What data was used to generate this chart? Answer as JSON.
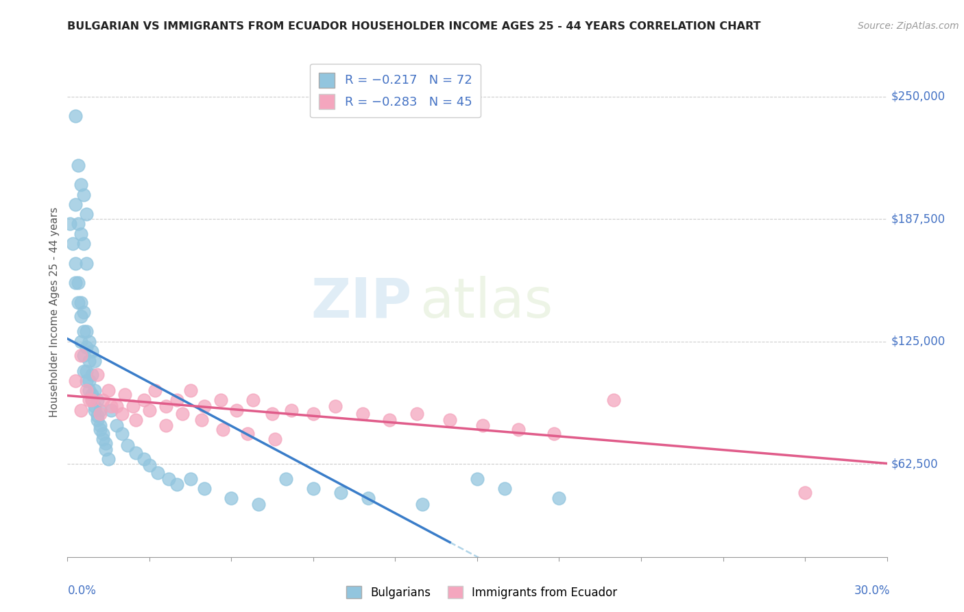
{
  "title": "BULGARIAN VS IMMIGRANTS FROM ECUADOR HOUSEHOLDER INCOME AGES 25 - 44 YEARS CORRELATION CHART",
  "source": "Source: ZipAtlas.com",
  "ylabel": "Householder Income Ages 25 - 44 years",
  "yticks": [
    62500,
    125000,
    187500,
    250000
  ],
  "ytick_labels": [
    "$62,500",
    "$125,000",
    "$187,500",
    "$250,000"
  ],
  "xmin": 0.0,
  "xmax": 0.3,
  "ymin": 15000,
  "ymax": 265000,
  "legend_blue_r": "R = -0.217",
  "legend_blue_n": "N = 72",
  "legend_pink_r": "R = -0.283",
  "legend_pink_n": "N = 45",
  "blue_scatter_color": "#92c5de",
  "pink_scatter_color": "#f4a6be",
  "blue_line_color": "#3a7dc9",
  "pink_line_color": "#e05c8a",
  "blue_dash_color": "#b0d4e8",
  "watermark_zip": "ZIP",
  "watermark_atlas": "atlas",
  "bulgarians_x": [
    0.003,
    0.004,
    0.005,
    0.006,
    0.007,
    0.003,
    0.004,
    0.005,
    0.006,
    0.007,
    0.001,
    0.002,
    0.003,
    0.004,
    0.005,
    0.006,
    0.007,
    0.008,
    0.009,
    0.01,
    0.003,
    0.004,
    0.005,
    0.006,
    0.007,
    0.008,
    0.009,
    0.01,
    0.011,
    0.012,
    0.005,
    0.006,
    0.007,
    0.008,
    0.009,
    0.01,
    0.011,
    0.012,
    0.013,
    0.014,
    0.006,
    0.007,
    0.008,
    0.009,
    0.01,
    0.011,
    0.012,
    0.013,
    0.014,
    0.015,
    0.016,
    0.018,
    0.02,
    0.022,
    0.025,
    0.028,
    0.03,
    0.033,
    0.037,
    0.04,
    0.045,
    0.05,
    0.06,
    0.07,
    0.08,
    0.09,
    0.1,
    0.11,
    0.13,
    0.15,
    0.16,
    0.18
  ],
  "bulgarians_y": [
    240000,
    215000,
    205000,
    200000,
    190000,
    195000,
    185000,
    180000,
    175000,
    165000,
    185000,
    175000,
    165000,
    155000,
    145000,
    140000,
    130000,
    125000,
    120000,
    115000,
    155000,
    145000,
    138000,
    130000,
    122000,
    115000,
    108000,
    100000,
    95000,
    90000,
    125000,
    118000,
    110000,
    105000,
    98000,
    92000,
    87000,
    82000,
    78000,
    73000,
    110000,
    105000,
    100000,
    95000,
    90000,
    85000,
    80000,
    75000,
    70000,
    65000,
    90000,
    82000,
    78000,
    72000,
    68000,
    65000,
    62000,
    58000,
    55000,
    52000,
    55000,
    50000,
    45000,
    42000,
    55000,
    50000,
    48000,
    45000,
    42000,
    55000,
    50000,
    45000
  ],
  "ecuador_x": [
    0.003,
    0.005,
    0.007,
    0.009,
    0.011,
    0.013,
    0.015,
    0.018,
    0.021,
    0.024,
    0.028,
    0.032,
    0.036,
    0.04,
    0.045,
    0.05,
    0.056,
    0.062,
    0.068,
    0.075,
    0.082,
    0.09,
    0.098,
    0.108,
    0.118,
    0.128,
    0.14,
    0.152,
    0.165,
    0.178,
    0.005,
    0.008,
    0.012,
    0.016,
    0.02,
    0.025,
    0.03,
    0.036,
    0.042,
    0.049,
    0.057,
    0.066,
    0.076,
    0.2,
    0.27
  ],
  "ecuador_y": [
    105000,
    118000,
    100000,
    95000,
    108000,
    95000,
    100000,
    92000,
    98000,
    92000,
    95000,
    100000,
    92000,
    95000,
    100000,
    92000,
    95000,
    90000,
    95000,
    88000,
    90000,
    88000,
    92000,
    88000,
    85000,
    88000,
    85000,
    82000,
    80000,
    78000,
    90000,
    95000,
    88000,
    92000,
    88000,
    85000,
    90000,
    82000,
    88000,
    85000,
    80000,
    78000,
    75000,
    95000,
    48000
  ]
}
